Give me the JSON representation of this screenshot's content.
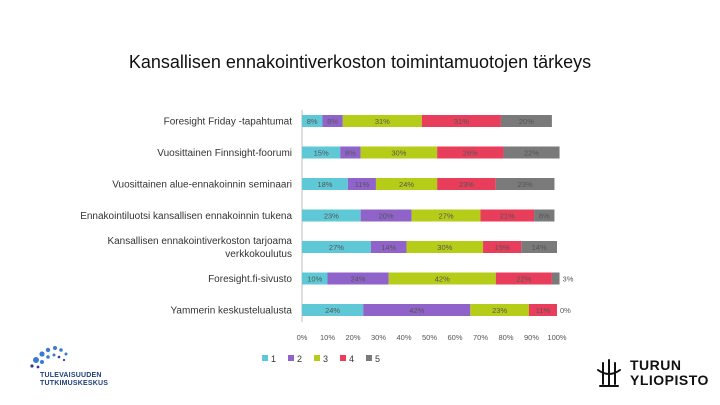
{
  "chart_data": {
    "type": "stacked-bar-horizontal",
    "title": "Kansallisen ennakointiverkoston toimintamuotojen tärkeys",
    "categories": [
      "Foresight Friday -tapahtumat",
      "Vuosittainen Finnsight-foorumi",
      "Vuosittainen alue-ennakoinnin seminaari",
      "Ennakointiluotsi kansallisen ennakoinnin tukena",
      "Kansallisen ennakointiverkoston tarjoama verkkokoulutus",
      "Foresight.fi-sivusto",
      "Yammerin keskustelualusta"
    ],
    "series": [
      {
        "name": "1",
        "color": "#5ec8d6",
        "values": [
          8,
          15,
          18,
          23,
          27,
          10,
          24
        ]
      },
      {
        "name": "2",
        "color": "#8f63c9",
        "values": [
          8,
          8,
          11,
          20,
          14,
          24,
          42
        ]
      },
      {
        "name": "3",
        "color": "#b5cc18",
        "values": [
          31,
          30,
          24,
          27,
          30,
          42,
          23
        ]
      },
      {
        "name": "4",
        "color": "#e83e5b",
        "values": [
          31,
          26,
          23,
          21,
          15,
          22,
          11
        ]
      },
      {
        "name": "5",
        "color": "#7a7a7a",
        "values": [
          20,
          22,
          23,
          8,
          14,
          3,
          0
        ]
      }
    ],
    "data_labels": [
      [
        "8%",
        "8%",
        "31%",
        "31%",
        "20%"
      ],
      [
        "15%",
        "8%",
        "30%",
        "26%",
        "22%"
      ],
      [
        "18%",
        "11%",
        "24%",
        "23%",
        "23%"
      ],
      [
        "23%",
        "20%",
        "27%",
        "21%",
        "8%"
      ],
      [
        "27%",
        "14%",
        "30%",
        "15%",
        "14%"
      ],
      [
        "10%",
        "24%",
        "42%",
        "22%",
        "3%"
      ],
      [
        "24%",
        "42%",
        "23%",
        "11%",
        "0%"
      ]
    ],
    "x_ticks": [
      "0%",
      "10%",
      "20%",
      "30%",
      "40%",
      "50%",
      "60%",
      "70%",
      "80%",
      "90%",
      "100%"
    ],
    "xlim": [
      0,
      100
    ],
    "legend_position": "bottom-left"
  },
  "logos": {
    "left": {
      "line1": "TULEVAISUUDEN",
      "line2": "TUTKIMUSKESKUS"
    },
    "right": {
      "line1": "TURUN",
      "line2": "YLIOPISTO"
    }
  }
}
